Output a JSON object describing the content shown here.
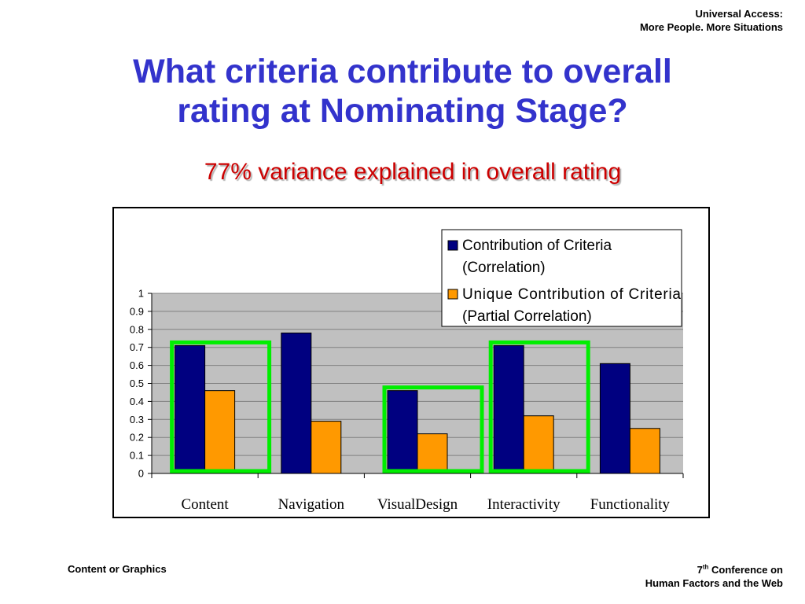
{
  "header": {
    "line1": "Universal Access:",
    "line2": "More People. More Situations"
  },
  "slide": {
    "title_line1": "What criteria contribute to overall",
    "title_line2": "rating at Nominating Stage?",
    "subtitle": "77% variance explained in overall rating"
  },
  "footer": {
    "left": "Content or Graphics",
    "right_number": "7",
    "right_superscript": "th",
    "right_line1_rest": " Conference on",
    "right_line2": "Human Factors and the Web"
  },
  "colors": {
    "title": "#3333cc",
    "subtitle": "#cc0000",
    "series_correlation": "#000080",
    "series_partial": "#ff9900",
    "plot_background": "#c0c0c0",
    "highlight_box": "#00ee00"
  },
  "chart_data": {
    "type": "bar",
    "categories": [
      "Content",
      "Navigation",
      "VisualDesign",
      "Interactivity",
      "Functionality"
    ],
    "series": [
      {
        "name": "Contribution of Criteria (Correlation)",
        "values": [
          0.71,
          0.78,
          0.46,
          0.71,
          0.61
        ]
      },
      {
        "name": "Unique Contribution of Criteria (Partial Correlation)",
        "values": [
          0.46,
          0.29,
          0.22,
          0.32,
          0.25
        ]
      }
    ],
    "legend_lines": [
      [
        "Contribution of Criteria",
        "(Correlation)"
      ],
      [
        "Unique Contribution of Criteria",
        "(Partial Correlation)"
      ]
    ],
    "legend_position": "top-right",
    "highlighted_categories": [
      "Content",
      "VisualDesign",
      "Interactivity"
    ],
    "ylim": [
      0,
      1
    ],
    "yticks": [
      "0",
      "0.1",
      "0.2",
      "0.3",
      "0.4",
      "0.5",
      "0.6",
      "0.7",
      "0.8",
      "0.9",
      "1"
    ],
    "grid": true,
    "title": "",
    "xlabel": "",
    "ylabel": ""
  }
}
